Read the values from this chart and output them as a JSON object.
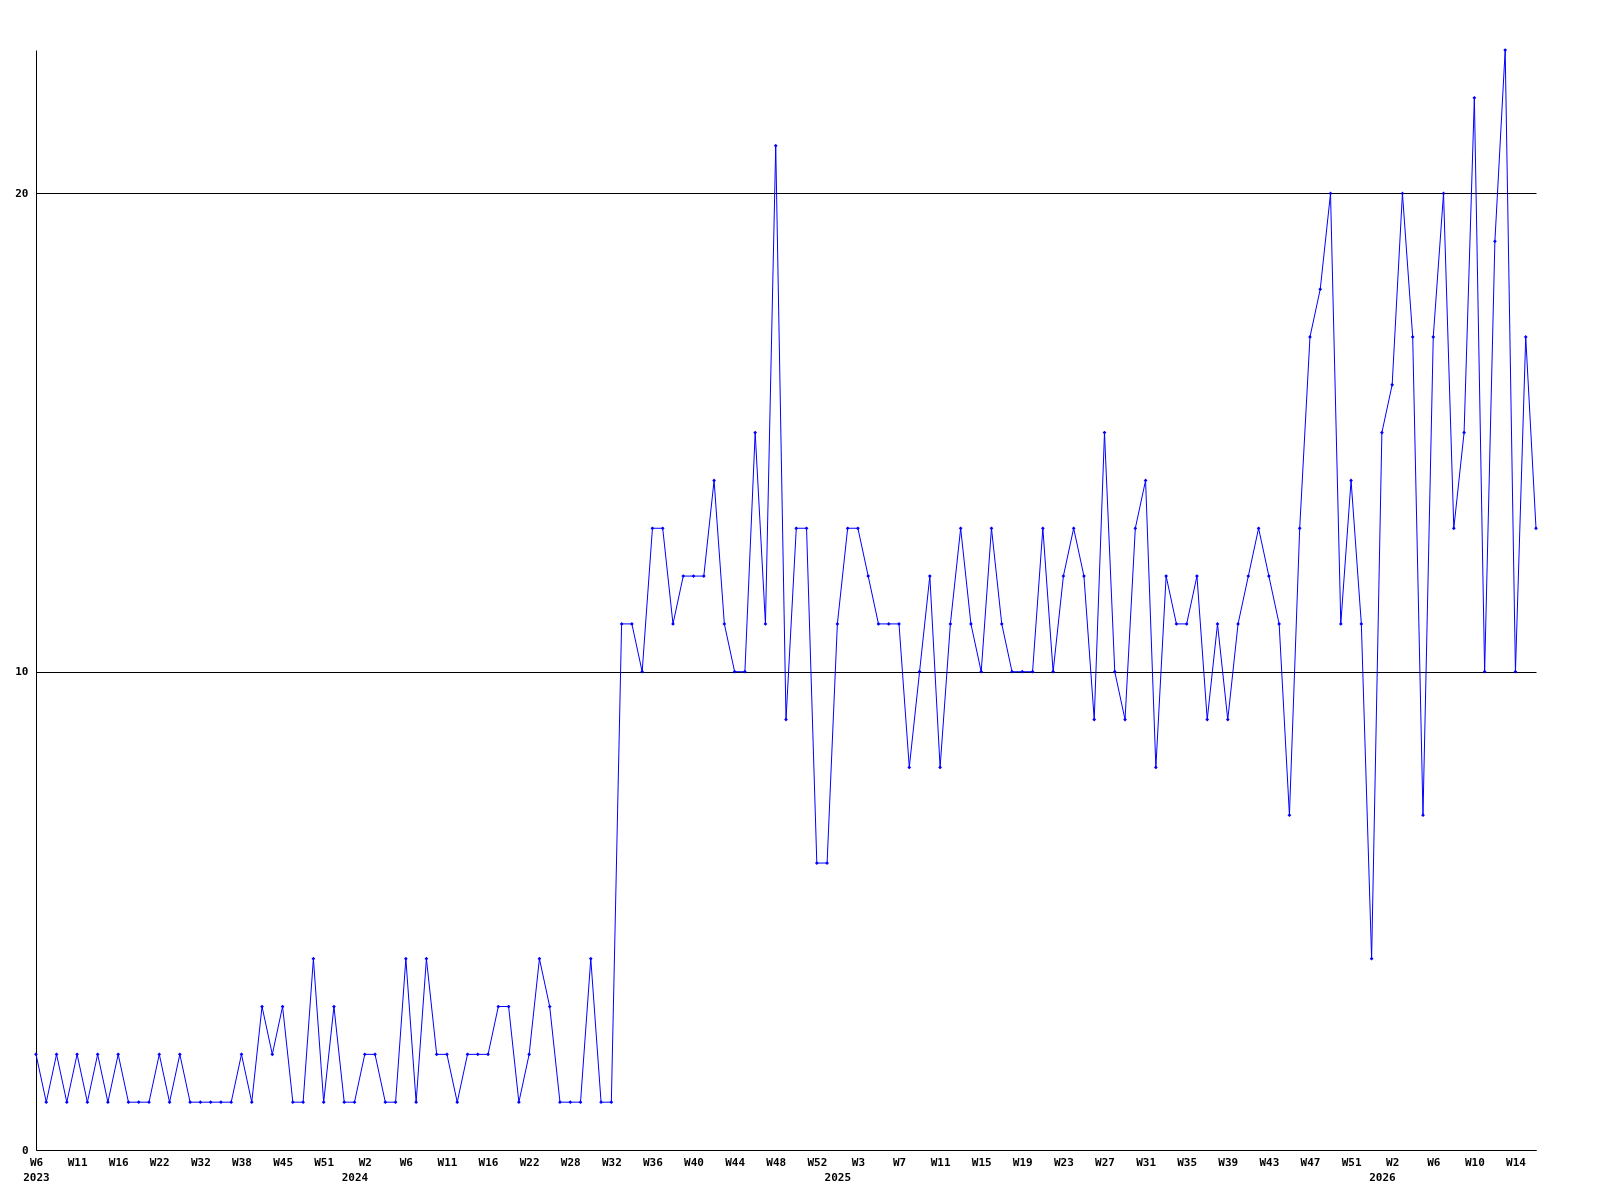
{
  "chart_data": {
    "type": "line",
    "categories": [
      "W6\n2023",
      null,
      null,
      null,
      "W11",
      null,
      null,
      null,
      "W16",
      null,
      null,
      null,
      "W22",
      null,
      null,
      null,
      "W32",
      null,
      null,
      null,
      "W38",
      null,
      null,
      null,
      "W45",
      null,
      null,
      null,
      "W51",
      null,
      null,
      "\n2024",
      "W2",
      null,
      null,
      null,
      "W6",
      null,
      null,
      null,
      "W11",
      null,
      null,
      null,
      "W16",
      null,
      null,
      null,
      "W22",
      null,
      null,
      null,
      "W28",
      null,
      null,
      null,
      "W32",
      null,
      null,
      null,
      "W36",
      null,
      null,
      null,
      "W40",
      null,
      null,
      null,
      "W44",
      null,
      null,
      null,
      "W48",
      null,
      null,
      null,
      "W52",
      null,
      "\n2025",
      null,
      "W3",
      null,
      null,
      null,
      "W7",
      null,
      null,
      null,
      "W11",
      null,
      null,
      null,
      "W15",
      null,
      null,
      null,
      "W19",
      null,
      null,
      null,
      "W23",
      null,
      null,
      null,
      "W27",
      null,
      null,
      null,
      "W31",
      null,
      null,
      null,
      "W35",
      null,
      null,
      null,
      "W39",
      null,
      null,
      null,
      "W43",
      null,
      null,
      null,
      "W47",
      null,
      null,
      null,
      "W51",
      null,
      null,
      "\n2026",
      "W2",
      null,
      null,
      null,
      "W6",
      null,
      null,
      null,
      "W10",
      null,
      null,
      null,
      "W14",
      null,
      null
    ],
    "series": [
      {
        "color": "#0000ff",
        "values": [
          2,
          1,
          2,
          1,
          2,
          1,
          2,
          1,
          2,
          1,
          1,
          1,
          2,
          1,
          2,
          1,
          1,
          1,
          1,
          1,
          2,
          1,
          3,
          2,
          3,
          1,
          1,
          4,
          1,
          3,
          1,
          1,
          2,
          2,
          1,
          1,
          4,
          1,
          4,
          2,
          2,
          1,
          2,
          2,
          2,
          3,
          3,
          1,
          2,
          4,
          3,
          1,
          1,
          1,
          4,
          1,
          1,
          11,
          11,
          10,
          13,
          13,
          11,
          12,
          12,
          12,
          14,
          11,
          10,
          10,
          15,
          11,
          21,
          9,
          13,
          13,
          6,
          6,
          11,
          13,
          13,
          12,
          11,
          11,
          11,
          8,
          10,
          12,
          8,
          11,
          13,
          11,
          10,
          13,
          11,
          10,
          10,
          10,
          13,
          10,
          12,
          13,
          12,
          9,
          15,
          10,
          9,
          13,
          14,
          8,
          12,
          11,
          11,
          12,
          9,
          11,
          9,
          11,
          12,
          13,
          12,
          11,
          7,
          13,
          17,
          18,
          20,
          11,
          14,
          11,
          4,
          15,
          16,
          20,
          17,
          7,
          17,
          20,
          13,
          15,
          22,
          10,
          19,
          23,
          10,
          17,
          13
        ]
      }
    ],
    "ylim": [
      0,
      23
    ],
    "yticks": [
      0,
      10,
      20
    ],
    "grid": "y",
    "marker": "diamond",
    "line_style": "solid"
  }
}
